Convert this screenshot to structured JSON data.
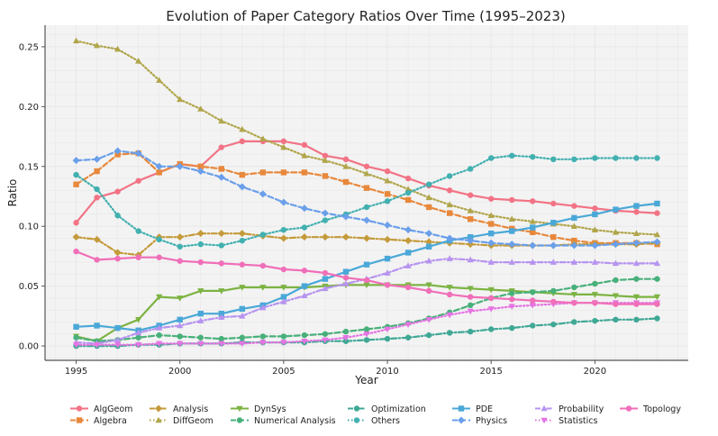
{
  "chart_data": {
    "type": "line",
    "title": "Evolution of Paper Category Ratios Over Time (1995–2023)",
    "xlabel": "Year",
    "ylabel": "Ratio",
    "xlim": [
      1993.5,
      2024.5
    ],
    "ylim": [
      -0.012,
      0.268
    ],
    "xticks": [
      1995,
      2000,
      2005,
      2010,
      2015,
      2020
    ],
    "yticks": [
      0.0,
      0.05,
      0.1,
      0.15,
      0.2,
      0.25
    ],
    "ytick_labels": [
      "0.00",
      "0.05",
      "0.10",
      "0.15",
      "0.20",
      "0.25"
    ],
    "grid": true,
    "legend_position": "bottom",
    "x": [
      1995,
      1996,
      1997,
      1998,
      1999,
      2000,
      2001,
      2002,
      2003,
      2004,
      2005,
      2006,
      2007,
      2008,
      2009,
      2010,
      2011,
      2012,
      2013,
      2014,
      2015,
      2016,
      2017,
      2018,
      2019,
      2020,
      2021,
      2022,
      2023
    ],
    "series": [
      {
        "name": "AlgGeom",
        "color": "#f27385",
        "dash": "solid",
        "marker": "circle",
        "values": [
          0.103,
          0.124,
          0.129,
          0.138,
          0.145,
          0.152,
          0.15,
          0.166,
          0.171,
          0.171,
          0.171,
          0.168,
          0.159,
          0.156,
          0.15,
          0.146,
          0.14,
          0.134,
          0.13,
          0.126,
          0.123,
          0.122,
          0.121,
          0.119,
          0.117,
          0.115,
          0.113,
          0.112,
          0.111
        ]
      },
      {
        "name": "Algebra",
        "color": "#e8883c",
        "dash": "dash",
        "marker": "square",
        "values": [
          0.135,
          0.146,
          0.16,
          0.161,
          0.145,
          0.152,
          0.15,
          0.148,
          0.143,
          0.145,
          0.145,
          0.145,
          0.142,
          0.137,
          0.132,
          0.127,
          0.122,
          0.116,
          0.111,
          0.106,
          0.102,
          0.098,
          0.095,
          0.091,
          0.088,
          0.086,
          0.086,
          0.086,
          0.085
        ]
      },
      {
        "name": "Analysis",
        "color": "#c49a3a",
        "dash": "dashdot",
        "marker": "diamond",
        "values": [
          0.091,
          0.089,
          0.078,
          0.076,
          0.091,
          0.091,
          0.094,
          0.094,
          0.094,
          0.092,
          0.09,
          0.091,
          0.091,
          0.091,
          0.09,
          0.089,
          0.088,
          0.087,
          0.086,
          0.085,
          0.084,
          0.084,
          0.084,
          0.084,
          0.085,
          0.085,
          0.085,
          0.085,
          0.086
        ]
      },
      {
        "name": "DiffGeom",
        "color": "#b0a54a",
        "dash": "dot",
        "marker": "triangle",
        "values": [
          0.255,
          0.251,
          0.248,
          0.238,
          0.222,
          0.206,
          0.198,
          0.188,
          0.181,
          0.173,
          0.166,
          0.159,
          0.155,
          0.15,
          0.144,
          0.138,
          0.131,
          0.124,
          0.118,
          0.113,
          0.109,
          0.106,
          0.104,
          0.102,
          0.1,
          0.097,
          0.095,
          0.094,
          0.093
        ]
      },
      {
        "name": "DynSys",
        "color": "#7cb342",
        "dash": "solid",
        "marker": "triangle-down",
        "values": [
          0.008,
          0.004,
          0.015,
          0.022,
          0.041,
          0.04,
          0.046,
          0.046,
          0.049,
          0.049,
          0.049,
          0.049,
          0.05,
          0.051,
          0.051,
          0.051,
          0.051,
          0.051,
          0.049,
          0.048,
          0.047,
          0.046,
          0.045,
          0.044,
          0.043,
          0.043,
          0.042,
          0.041,
          0.041
        ]
      },
      {
        "name": "Numerical Analysis",
        "color": "#48b07a",
        "dash": "dash",
        "marker": "circle",
        "values": [
          0.007,
          0.004,
          0.005,
          0.007,
          0.009,
          0.008,
          0.007,
          0.006,
          0.007,
          0.008,
          0.008,
          0.009,
          0.01,
          0.012,
          0.014,
          0.016,
          0.019,
          0.023,
          0.028,
          0.034,
          0.04,
          0.044,
          0.045,
          0.046,
          0.049,
          0.052,
          0.055,
          0.056,
          0.056
        ]
      },
      {
        "name": "Optimization",
        "color": "#3fa895",
        "dash": "dashdot",
        "marker": "circle",
        "values": [
          0.0,
          0.0,
          0.0,
          0.001,
          0.001,
          0.002,
          0.002,
          0.002,
          0.003,
          0.003,
          0.003,
          0.003,
          0.004,
          0.004,
          0.005,
          0.006,
          0.007,
          0.009,
          0.011,
          0.012,
          0.014,
          0.015,
          0.017,
          0.018,
          0.02,
          0.021,
          0.022,
          0.022,
          0.023
        ]
      },
      {
        "name": "Others",
        "color": "#42b0b0",
        "dash": "dot",
        "marker": "circle",
        "values": [
          0.143,
          0.131,
          0.109,
          0.096,
          0.089,
          0.083,
          0.085,
          0.084,
          0.088,
          0.093,
          0.097,
          0.099,
          0.105,
          0.11,
          0.116,
          0.121,
          0.128,
          0.135,
          0.142,
          0.148,
          0.157,
          0.159,
          0.158,
          0.156,
          0.156,
          0.157,
          0.157,
          0.157,
          0.157
        ]
      },
      {
        "name": "PDE",
        "color": "#4aa8d8",
        "dash": "solid",
        "marker": "square",
        "values": [
          0.016,
          0.017,
          0.015,
          0.013,
          0.017,
          0.022,
          0.027,
          0.027,
          0.031,
          0.034,
          0.041,
          0.05,
          0.056,
          0.062,
          0.068,
          0.073,
          0.078,
          0.083,
          0.088,
          0.091,
          0.094,
          0.096,
          0.099,
          0.103,
          0.107,
          0.11,
          0.114,
          0.117,
          0.119
        ]
      },
      {
        "name": "Physics",
        "color": "#6a9fea",
        "dash": "dash",
        "marker": "diamond",
        "values": [
          0.155,
          0.156,
          0.163,
          0.161,
          0.15,
          0.15,
          0.146,
          0.141,
          0.133,
          0.127,
          0.12,
          0.115,
          0.111,
          0.108,
          0.105,
          0.101,
          0.097,
          0.094,
          0.09,
          0.088,
          0.086,
          0.085,
          0.084,
          0.084,
          0.084,
          0.084,
          0.085,
          0.086,
          0.087
        ]
      },
      {
        "name": "Probability",
        "color": "#b793f0",
        "dash": "dashdot",
        "marker": "triangle",
        "values": [
          0.003,
          0.002,
          0.005,
          0.011,
          0.015,
          0.017,
          0.021,
          0.024,
          0.025,
          0.032,
          0.037,
          0.042,
          0.048,
          0.052,
          0.056,
          0.061,
          0.067,
          0.071,
          0.073,
          0.072,
          0.07,
          0.07,
          0.07,
          0.07,
          0.07,
          0.07,
          0.069,
          0.069,
          0.069
        ]
      },
      {
        "name": "Statistics",
        "color": "#e574e3",
        "dash": "dot",
        "marker": "triangle-down",
        "values": [
          0.001,
          0.001,
          0.001,
          0.001,
          0.002,
          0.002,
          0.002,
          0.002,
          0.002,
          0.003,
          0.003,
          0.004,
          0.005,
          0.007,
          0.01,
          0.014,
          0.018,
          0.022,
          0.026,
          0.029,
          0.031,
          0.033,
          0.034,
          0.035,
          0.036,
          0.036,
          0.036,
          0.036,
          0.036
        ]
      },
      {
        "name": "Topology",
        "color": "#f06fb8",
        "dash": "solid",
        "marker": "circle",
        "values": [
          0.079,
          0.072,
          0.073,
          0.074,
          0.074,
          0.071,
          0.07,
          0.069,
          0.068,
          0.067,
          0.064,
          0.063,
          0.061,
          0.057,
          0.055,
          0.051,
          0.049,
          0.046,
          0.043,
          0.041,
          0.04,
          0.039,
          0.038,
          0.037,
          0.036,
          0.036,
          0.035,
          0.035,
          0.035
        ]
      }
    ]
  }
}
